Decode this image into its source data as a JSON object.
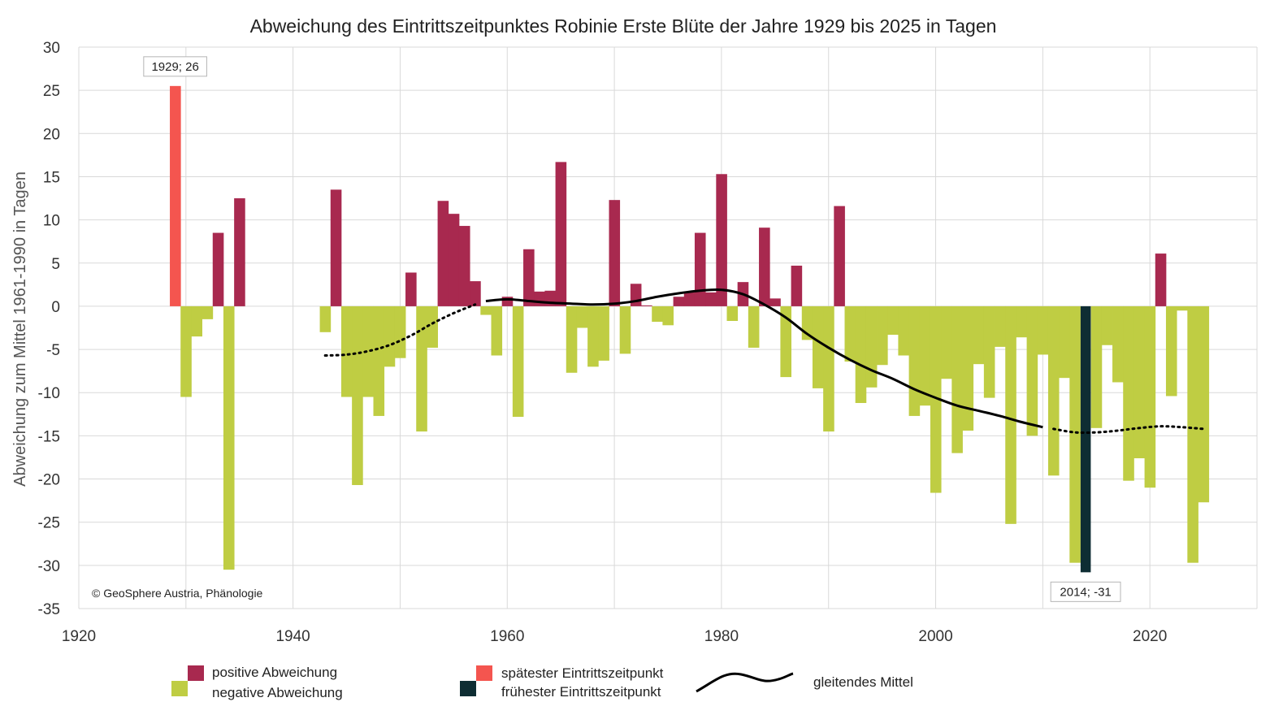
{
  "chart_data": {
    "type": "bar",
    "title": "Abweichung des Eintrittszeitpunktes Robinie Erste Blüte der Jahre 1929 bis 2025 in Tagen",
    "xlabel": "",
    "ylabel": "Abweichung zum Mittel 1961-1990 in Tagen",
    "xlim": [
      1920,
      2030
    ],
    "ylim": [
      -35,
      30
    ],
    "x_ticks": [
      1920,
      1940,
      1960,
      1980,
      2000,
      2020
    ],
    "y_ticks": [
      30,
      25,
      20,
      15,
      10,
      5,
      0,
      -5,
      -10,
      -15,
      -20,
      -25,
      -30,
      -35
    ],
    "grid": true,
    "copyright": "© GeoSphere Austria, Phänologie",
    "colors": {
      "positive": "#a8294f",
      "negative": "#bfcd43",
      "latest": "#f4554f",
      "earliest": "#0e2d33",
      "moving_average": "#000000",
      "grid": "#d9d9d9"
    },
    "bars": [
      {
        "year": 1929,
        "value": 25.5,
        "kind": "latest"
      },
      {
        "year": 1930,
        "value": -10.5
      },
      {
        "year": 1931,
        "value": -3.5
      },
      {
        "year": 1932,
        "value": -1.5
      },
      {
        "year": 1933,
        "value": 8.5
      },
      {
        "year": 1934,
        "value": -30.5
      },
      {
        "year": 1935,
        "value": 12.5
      },
      {
        "year": 1943,
        "value": -3
      },
      {
        "year": 1944,
        "value": 13.5
      },
      {
        "year": 1945,
        "value": -10.5
      },
      {
        "year": 1946,
        "value": -20.7
      },
      {
        "year": 1947,
        "value": -10.5
      },
      {
        "year": 1948,
        "value": -12.7
      },
      {
        "year": 1949,
        "value": -7
      },
      {
        "year": 1950,
        "value": -6
      },
      {
        "year": 1951,
        "value": 3.9
      },
      {
        "year": 1952,
        "value": -14.5
      },
      {
        "year": 1953,
        "value": -4.8
      },
      {
        "year": 1954,
        "value": 12.2
      },
      {
        "year": 1955,
        "value": 10.7
      },
      {
        "year": 1956,
        "value": 9.3
      },
      {
        "year": 1957,
        "value": 2.9
      },
      {
        "year": 1958,
        "value": -1
      },
      {
        "year": 1959,
        "value": -5.7
      },
      {
        "year": 1960,
        "value": 1.1
      },
      {
        "year": 1961,
        "value": -12.8
      },
      {
        "year": 1962,
        "value": 6.6
      },
      {
        "year": 1963,
        "value": 1.7
      },
      {
        "year": 1964,
        "value": 1.8
      },
      {
        "year": 1965,
        "value": 16.7
      },
      {
        "year": 1966,
        "value": -7.7
      },
      {
        "year": 1967,
        "value": -2.5
      },
      {
        "year": 1968,
        "value": -7
      },
      {
        "year": 1969,
        "value": -6.3
      },
      {
        "year": 1970,
        "value": 12.3
      },
      {
        "year": 1971,
        "value": -5.5
      },
      {
        "year": 1972,
        "value": 2.6
      },
      {
        "year": 1973,
        "value": 0.1
      },
      {
        "year": 1974,
        "value": -1.8
      },
      {
        "year": 1975,
        "value": -2.2
      },
      {
        "year": 1976,
        "value": 1.1
      },
      {
        "year": 1977,
        "value": 1.6
      },
      {
        "year": 1978,
        "value": 8.5
      },
      {
        "year": 1979,
        "value": 1.6
      },
      {
        "year": 1980,
        "value": 15.3
      },
      {
        "year": 1981,
        "value": -1.7
      },
      {
        "year": 1982,
        "value": 2.8
      },
      {
        "year": 1983,
        "value": -4.8
      },
      {
        "year": 1984,
        "value": 9.1
      },
      {
        "year": 1985,
        "value": 0.9
      },
      {
        "year": 1986,
        "value": -8.2
      },
      {
        "year": 1987,
        "value": 4.7
      },
      {
        "year": 1988,
        "value": -3.9
      },
      {
        "year": 1989,
        "value": -9.5
      },
      {
        "year": 1990,
        "value": -14.5
      },
      {
        "year": 1991,
        "value": 11.6
      },
      {
        "year": 1992,
        "value": -6.4
      },
      {
        "year": 1993,
        "value": -11.2
      },
      {
        "year": 1994,
        "value": -9.4
      },
      {
        "year": 1995,
        "value": -6.8
      },
      {
        "year": 1996,
        "value": -3.3
      },
      {
        "year": 1997,
        "value": -5.7
      },
      {
        "year": 1998,
        "value": -12.7
      },
      {
        "year": 1999,
        "value": -11.5
      },
      {
        "year": 2000,
        "value": -21.6
      },
      {
        "year": 2001,
        "value": -8.4
      },
      {
        "year": 2002,
        "value": -17
      },
      {
        "year": 2003,
        "value": -14.4
      },
      {
        "year": 2004,
        "value": -6.7
      },
      {
        "year": 2005,
        "value": -10.6
      },
      {
        "year": 2006,
        "value": -4.7
      },
      {
        "year": 2007,
        "value": -25.2
      },
      {
        "year": 2008,
        "value": -3.6
      },
      {
        "year": 2009,
        "value": -15
      },
      {
        "year": 2010,
        "value": -5.6
      },
      {
        "year": 2011,
        "value": -19.6
      },
      {
        "year": 2012,
        "value": -8.3
      },
      {
        "year": 2013,
        "value": -29.7
      },
      {
        "year": 2014,
        "value": -30.8,
        "kind": "earliest"
      },
      {
        "year": 2015,
        "value": -14.1
      },
      {
        "year": 2016,
        "value": -4.5
      },
      {
        "year": 2017,
        "value": -8.8
      },
      {
        "year": 2018,
        "value": -20.2
      },
      {
        "year": 2019,
        "value": -17.6
      },
      {
        "year": 2020,
        "value": -21
      },
      {
        "year": 2021,
        "value": 6.1
      },
      {
        "year": 2022,
        "value": -10.4
      },
      {
        "year": 2023,
        "value": -0.5
      },
      {
        "year": 2024,
        "value": -29.7
      },
      {
        "year": 2025,
        "value": -22.7
      }
    ],
    "moving_average": {
      "solid": [
        [
          1958,
          0.6
        ],
        [
          1960,
          0.8
        ],
        [
          1962,
          0.6
        ],
        [
          1964,
          0.4
        ],
        [
          1966,
          0.3
        ],
        [
          1968,
          0.2
        ],
        [
          1970,
          0.3
        ],
        [
          1972,
          0.6
        ],
        [
          1974,
          1.1
        ],
        [
          1976,
          1.5
        ],
        [
          1978,
          1.8
        ],
        [
          1980,
          1.9
        ],
        [
          1982,
          1.4
        ],
        [
          1984,
          0.2
        ],
        [
          1986,
          -1.3
        ],
        [
          1988,
          -3.2
        ],
        [
          1990,
          -4.8
        ],
        [
          1992,
          -6.2
        ],
        [
          1994,
          -7.4
        ],
        [
          1996,
          -8.4
        ],
        [
          1998,
          -9.6
        ],
        [
          2000,
          -10.6
        ],
        [
          2002,
          -11.5
        ],
        [
          2004,
          -12.1
        ],
        [
          2006,
          -12.7
        ],
        [
          2008,
          -13.4
        ],
        [
          2010,
          -14
        ]
      ],
      "dotted_start": [
        [
          1943,
          -5.7
        ],
        [
          1945,
          -5.6
        ],
        [
          1947,
          -5.2
        ],
        [
          1949,
          -4.5
        ],
        [
          1951,
          -3.4
        ],
        [
          1953,
          -2
        ],
        [
          1955,
          -0.8
        ],
        [
          1957,
          0.2
        ]
      ],
      "dotted_end": [
        [
          2011,
          -14.2
        ],
        [
          2013,
          -14.6
        ],
        [
          2015,
          -14.6
        ],
        [
          2017,
          -14.4
        ],
        [
          2019,
          -14.1
        ],
        [
          2021,
          -13.9
        ],
        [
          2023,
          -14.0
        ],
        [
          2025,
          -14.2
        ]
      ]
    },
    "annotations": [
      {
        "text": "1929; 26",
        "year": 1929
      },
      {
        "text": "2014; -31",
        "year": 2014
      }
    ],
    "legend": {
      "positive": "positive Abweichung",
      "negative": "negative Abweichung",
      "latest": "spätester Eintrittszeitpunkt",
      "earliest": "frühester Eintrittszeitpunkt",
      "moving_average": "gleitendes Mittel"
    }
  }
}
